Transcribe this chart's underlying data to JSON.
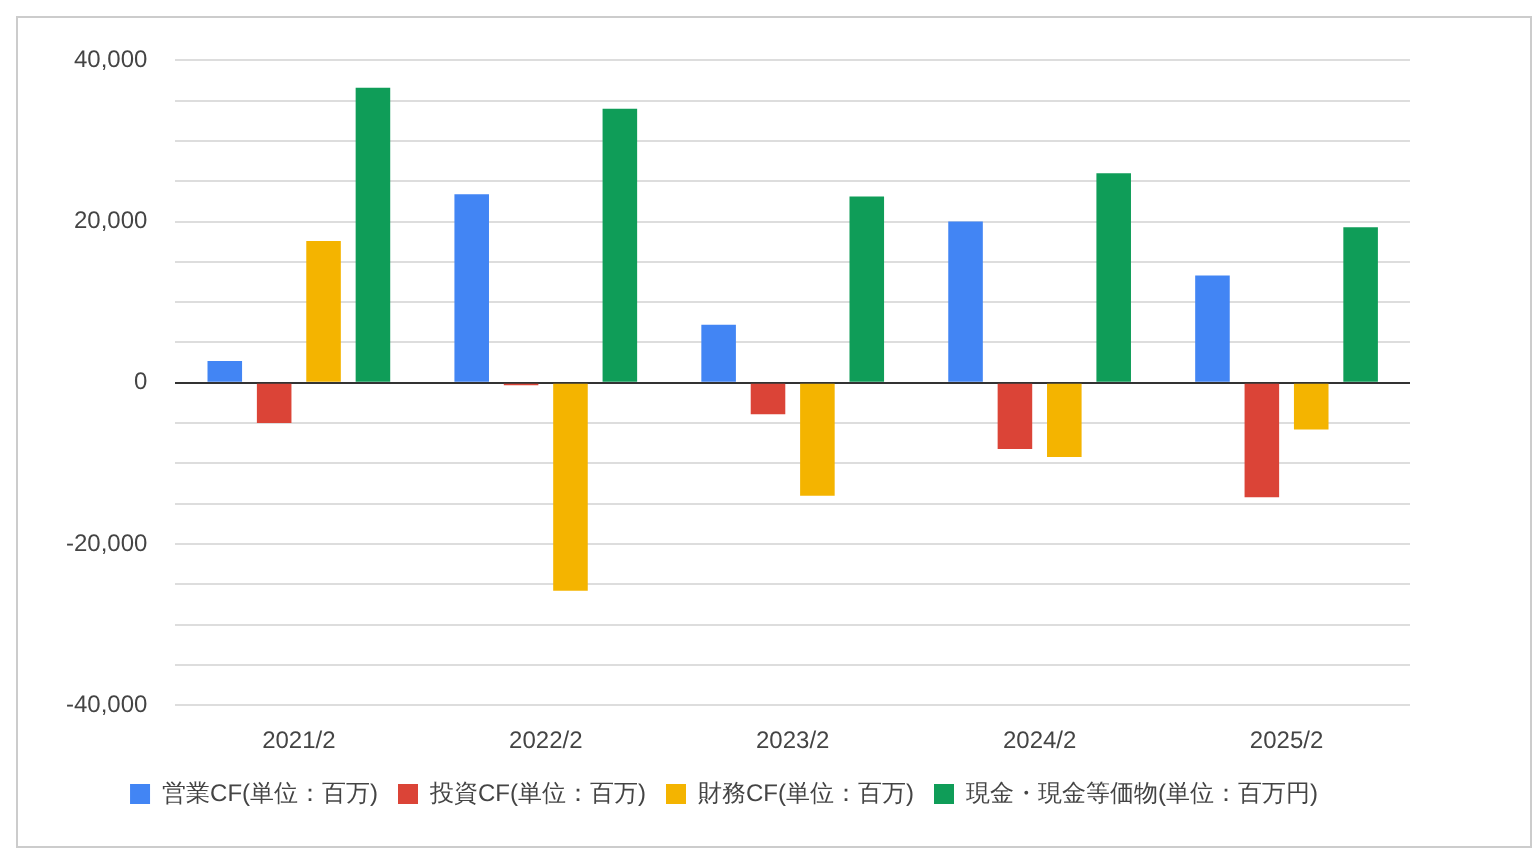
{
  "chart_data": {
    "type": "bar",
    "categories": [
      "2021/2",
      "2022/2",
      "2023/2",
      "2024/2",
      "2025/2"
    ],
    "series": [
      {
        "name": "営業CF(単位：百万)",
        "color": "#4285f4",
        "values": [
          2700,
          23400,
          7200,
          20000,
          13300
        ]
      },
      {
        "name": "投資CF(単位：百万)",
        "color": "#db4437",
        "values": [
          -5000,
          -300,
          -3900,
          -8200,
          -14200
        ]
      },
      {
        "name": "財務CF(単位：百万)",
        "color": "#f4b400",
        "values": [
          17600,
          -25800,
          -14000,
          -9200,
          -5800
        ]
      },
      {
        "name": "現金・現金等価物(単位：百万円)",
        "color": "#0f9d58",
        "values": [
          36600,
          34000,
          23100,
          26000,
          19300
        ]
      }
    ],
    "ylim": [
      -40000,
      40000
    ],
    "yticks": [
      {
        "value": -40000,
        "label": "-40,000"
      },
      {
        "value": -35000,
        "label": null
      },
      {
        "value": -30000,
        "label": null
      },
      {
        "value": -25000,
        "label": null
      },
      {
        "value": -20000,
        "label": "-20,000"
      },
      {
        "value": -15000,
        "label": null
      },
      {
        "value": -10000,
        "label": null
      },
      {
        "value": -5000,
        "label": null
      },
      0,
      {
        "value": 5000,
        "label": null
      },
      {
        "value": 10000,
        "label": null
      },
      {
        "value": 15000,
        "label": null
      },
      {
        "value": 20000,
        "label": "20,000"
      },
      {
        "value": 25000,
        "label": null
      },
      {
        "value": 30000,
        "label": null
      },
      {
        "value": 35000,
        "label": null
      },
      {
        "value": 40000,
        "label": "40,000"
      }
    ],
    "grid": "y",
    "legend": "bottom"
  }
}
